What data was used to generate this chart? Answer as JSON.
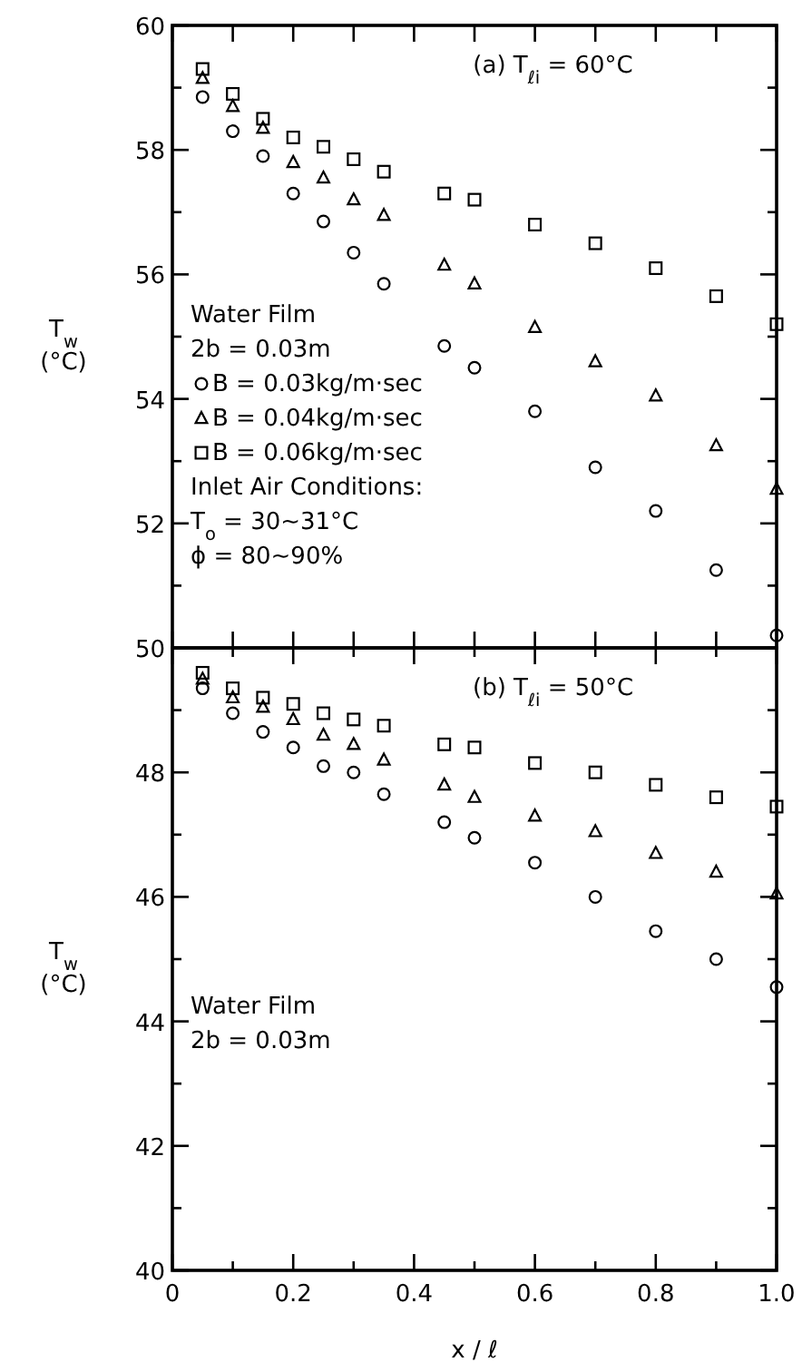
{
  "chart_data": [
    {
      "type": "scatter",
      "title": "(a) T$_{ℓi}$ = 60°C",
      "ylabel": "T$_{w}$ (°C)",
      "x": [
        0.05,
        0.1,
        0.15,
        0.2,
        0.25,
        0.3,
        0.35,
        0.45,
        0.5,
        0.6,
        0.7,
        0.8,
        0.9,
        1.0
      ],
      "series": [
        {
          "name": "B = 0.03kg/m·sec",
          "color": "#000000",
          "marker": "circle",
          "values": [
            58.85,
            58.3,
            57.9,
            57.3,
            56.85,
            56.35,
            55.85,
            54.85,
            54.5,
            53.8,
            52.9,
            52.2,
            51.25,
            50.2
          ]
        },
        {
          "name": "B = 0.04kg/m·sec",
          "color": "#000000",
          "marker": "triangle",
          "values": [
            59.15,
            58.7,
            58.35,
            57.8,
            57.55,
            57.2,
            56.95,
            56.15,
            55.85,
            55.15,
            54.6,
            54.05,
            53.25,
            52.55
          ]
        },
        {
          "name": "B = 0.06kg/m·sec",
          "color": "#000000",
          "marker": "square",
          "values": [
            59.3,
            58.9,
            58.5,
            58.2,
            58.05,
            57.85,
            57.65,
            57.3,
            57.2,
            56.8,
            56.5,
            56.1,
            55.65,
            55.2
          ]
        }
      ],
      "annotations": [
        "Water Film",
        "2b = 0.03m",
        "Inlet Air Conditions:",
        "T$_{o}$ = 30~31°C",
        "ϕ = 80~90%"
      ],
      "legend": "left",
      "xlim": [
        0,
        1
      ],
      "ylim": [
        50,
        60
      ],
      "xticks": [
        0,
        0.1,
        0.2,
        0.3,
        0.4,
        0.5,
        0.6,
        0.7,
        0.8,
        0.9,
        1
      ],
      "yticks": [
        50,
        {
          "value": 51,
          "label": null
        },
        52,
        {
          "value": 53,
          "label": null
        },
        54,
        {
          "value": 55,
          "label": null
        },
        56,
        {
          "value": 57,
          "label": null
        },
        58,
        {
          "value": 59,
          "label": null
        },
        60
      ],
      "tick_labels": "y"
    },
    {
      "type": "scatter",
      "title": "(b) T$_{ℓi}$ = 50°C",
      "ylabel": "T$_{w}$ (°C)",
      "xlabel": "x / ℓ",
      "x": [
        0.05,
        0.1,
        0.15,
        0.2,
        0.25,
        0.3,
        0.35,
        0.45,
        0.5,
        0.6,
        0.7,
        0.8,
        0.9,
        1.0
      ],
      "series": [
        {
          "color": "#000000",
          "marker": "circle",
          "values": [
            49.35,
            48.95,
            48.65,
            48.4,
            48.1,
            48.0,
            47.65,
            47.2,
            46.95,
            46.55,
            46.0,
            45.45,
            45.0,
            44.55
          ]
        },
        {
          "color": "#000000",
          "marker": "triangle",
          "values": [
            49.5,
            49.2,
            49.05,
            48.85,
            48.6,
            48.45,
            48.2,
            47.8,
            47.6,
            47.3,
            47.05,
            46.7,
            46.4,
            46.05
          ]
        },
        {
          "color": "#000000",
          "marker": "square",
          "values": [
            49.6,
            49.35,
            49.2,
            49.1,
            48.95,
            48.85,
            48.75,
            48.45,
            48.4,
            48.15,
            48.0,
            47.8,
            47.6,
            47.45
          ]
        }
      ],
      "annotations": [
        "Water Film",
        "2b = 0.03m"
      ],
      "xlim": [
        0,
        1
      ],
      "ylim": [
        40,
        50
      ],
      "xticks": [
        0,
        {
          "value": 0.1,
          "label": null
        },
        0.2,
        {
          "value": 0.3,
          "label": null
        },
        0.4,
        {
          "value": 0.5,
          "label": null
        },
        0.6,
        {
          "value": 0.7,
          "label": null
        },
        0.8,
        {
          "value": 0.9,
          "label": null
        },
        {
          "value": 1,
          "label": "1.0"
        }
      ],
      "yticks": [
        40,
        {
          "value": 41,
          "label": null
        },
        42,
        {
          "value": 43,
          "label": null
        },
        44,
        {
          "value": 45,
          "label": null
        },
        46,
        {
          "value": 47,
          "label": null
        },
        48,
        {
          "value": 49,
          "label": null
        },
        {
          "value": 50,
          "label": null
        }
      ]
    }
  ]
}
